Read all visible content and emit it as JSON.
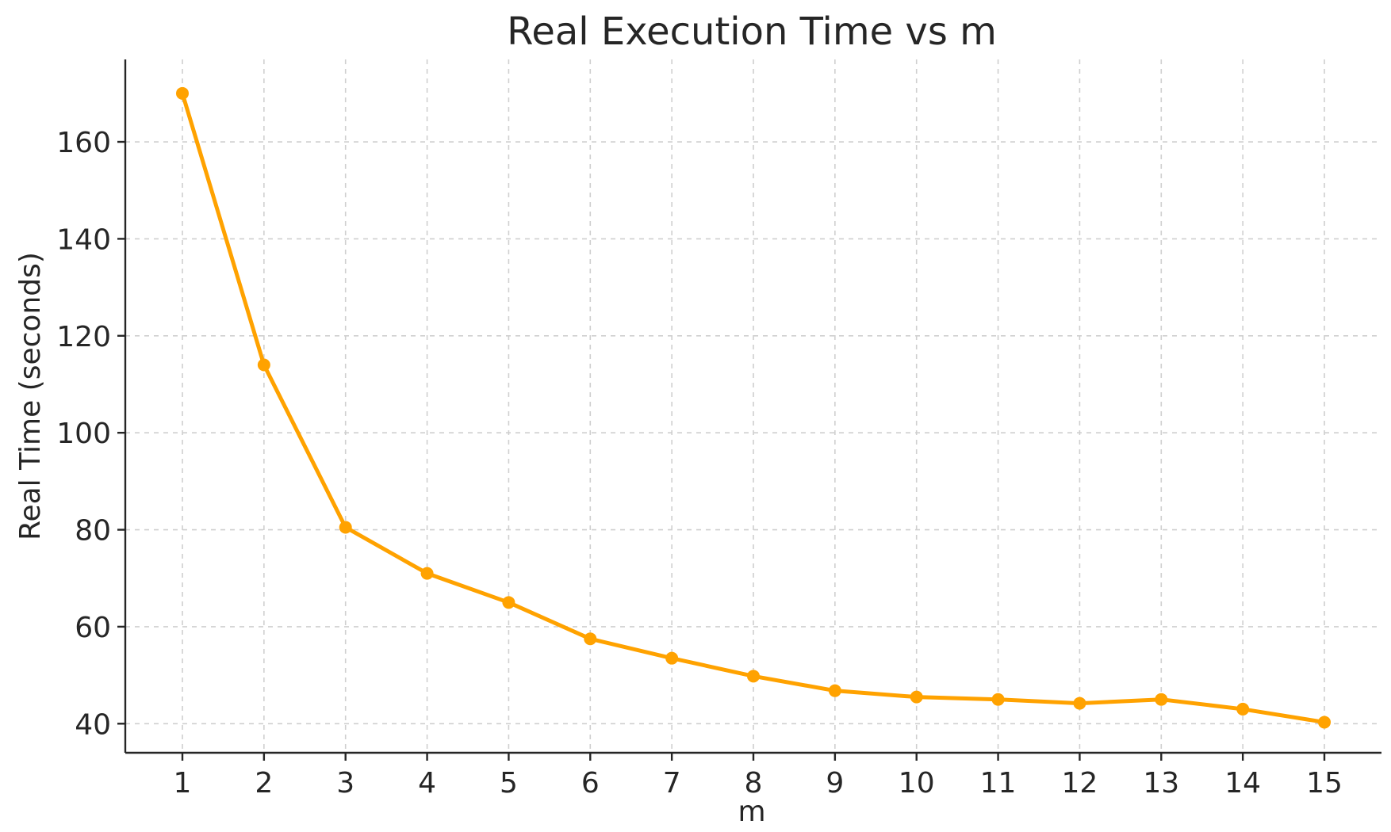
{
  "chart_data": {
    "type": "line",
    "title": "Real Execution Time vs m",
    "xlabel": "m",
    "ylabel": "Real Time (seconds)",
    "x": [
      1,
      2,
      3,
      4,
      5,
      6,
      7,
      8,
      9,
      10,
      11,
      12,
      13,
      14,
      15
    ],
    "x_tick_labels": [
      "1",
      "2",
      "3",
      "4",
      "5",
      "6",
      "7",
      "8",
      "9",
      "10",
      "11",
      "12",
      "13",
      "14",
      "15"
    ],
    "y_ticks": [
      40,
      60,
      80,
      100,
      120,
      140,
      160
    ],
    "y_tick_labels": [
      "40",
      "60",
      "80",
      "100",
      "120",
      "140",
      "160"
    ],
    "series": [
      {
        "values": [
          170,
          114,
          80.5,
          71,
          65,
          57.5,
          53.5,
          49.8,
          46.8,
          45.5,
          45,
          44.2,
          45,
          43,
          40.3
        ],
        "color": "#FFA200",
        "marker": "circle"
      }
    ],
    "xlim": [
      0.3,
      15.7
    ],
    "ylim": [
      34,
      177
    ],
    "grid": true,
    "legend": "none"
  }
}
